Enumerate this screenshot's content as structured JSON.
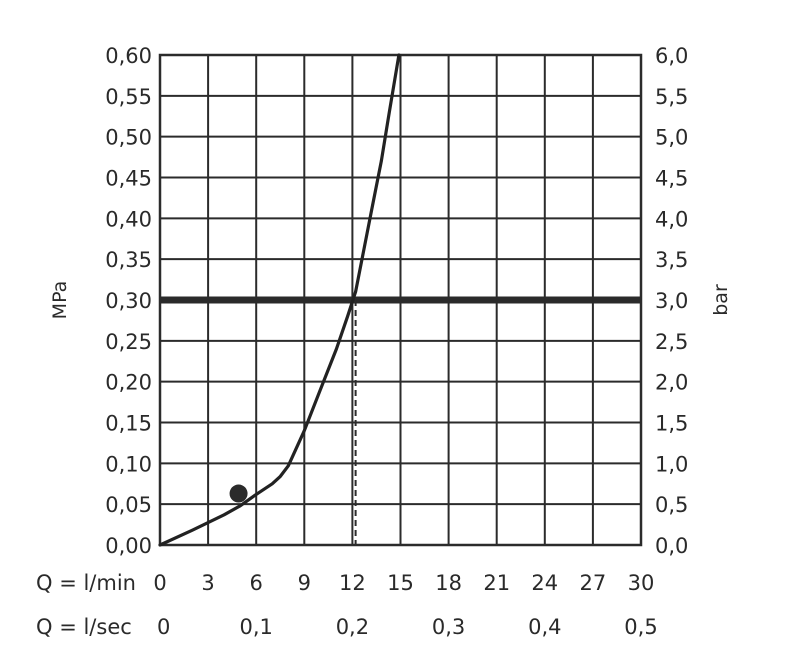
{
  "chart_data": {
    "type": "line",
    "left_axis": {
      "label": "MPa",
      "range": [
        0,
        0.6
      ],
      "ticks": [
        "0,00",
        "0,05",
        "0,10",
        "0,15",
        "0,20",
        "0,25",
        "0,30",
        "0,35",
        "0,40",
        "0,45",
        "0,50",
        "0,55",
        "0,60"
      ]
    },
    "right_axis": {
      "label": "bar",
      "range": [
        0,
        6
      ],
      "ticks": [
        "0,0",
        "0,5",
        "1,0",
        "1,5",
        "2,0",
        "2,5",
        "3,0",
        "3,5",
        "4,0",
        "4,5",
        "5,0",
        "5,5",
        "6,0"
      ]
    },
    "x_axis": {
      "unit": "l/min",
      "range": [
        0,
        30
      ],
      "row1_label": "Q = l/min",
      "row1_ticks": [
        "0",
        "3",
        "6",
        "9",
        "12",
        "15",
        "18",
        "21",
        "24",
        "27",
        "30"
      ],
      "row2_label": "Q = l/sec",
      "row2_ticks": [
        {
          "x": 0,
          "label": "0"
        },
        {
          "x": 6,
          "label": "0,1"
        },
        {
          "x": 12,
          "label": "0,2"
        },
        {
          "x": 18,
          "label": "0,3"
        },
        {
          "x": 24,
          "label": "0,4"
        },
        {
          "x": 30,
          "label": "0,5"
        }
      ]
    },
    "grid": true,
    "series": [
      {
        "x": [
          0,
          2,
          4,
          5,
          6,
          7,
          7.5,
          8,
          9,
          10,
          11,
          11.7,
          12.2,
          12.7,
          13.2,
          13.8,
          14.3,
          14.9
        ],
        "y": [
          0,
          0.018,
          0.037,
          0.048,
          0.062,
          0.075,
          0.084,
          0.097,
          0.14,
          0.19,
          0.24,
          0.28,
          0.31,
          0.36,
          0.41,
          0.47,
          0.53,
          0.6
        ]
      }
    ],
    "marker_point": {
      "x": 4.9,
      "y": 0.063
    },
    "reference_line_y": 0.3,
    "projection_x": 12.2
  }
}
